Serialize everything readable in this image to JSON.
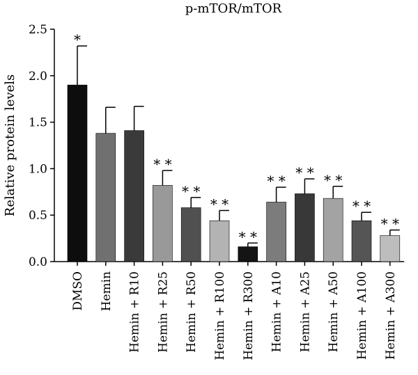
{
  "chart_data": {
    "type": "bar",
    "title": "p-mTOR/mTOR",
    "ylabel": "Relative protein levels",
    "xlabel": "",
    "ylim": [
      0,
      2.5
    ],
    "yticks": [
      "0.0",
      "0.5",
      "1.0",
      "1.5",
      "2.0",
      "2.5"
    ],
    "grid": false,
    "categories": [
      "DMSO",
      "Hemin",
      "Hemin + R10",
      "Hemin + R25",
      "Hemin + R50",
      "Hemin + R100",
      "Hemin + R300",
      "Hemin + A10",
      "Hemin + A25",
      "Hemin + A50",
      "Hemin + A100",
      "Hemin + A300"
    ],
    "values": [
      1.9,
      1.38,
      1.41,
      0.82,
      0.58,
      0.44,
      0.16,
      0.64,
      0.73,
      0.68,
      0.44,
      0.28
    ],
    "errors": [
      0.42,
      0.28,
      0.26,
      0.16,
      0.11,
      0.11,
      0.04,
      0.16,
      0.16,
      0.13,
      0.09,
      0.06
    ],
    "significance": [
      "*",
      "",
      "",
      "**",
      "**",
      "**",
      "**",
      "**",
      "**",
      "**",
      "**",
      "**"
    ],
    "colors": [
      "#0d0d0d",
      "#707070",
      "#3a3a3a",
      "#999999",
      "#505050",
      "#b3b3b3",
      "#141414",
      "#7c7c7c",
      "#383838",
      "#a3a3a3",
      "#555555",
      "#bdbdbd"
    ]
  }
}
